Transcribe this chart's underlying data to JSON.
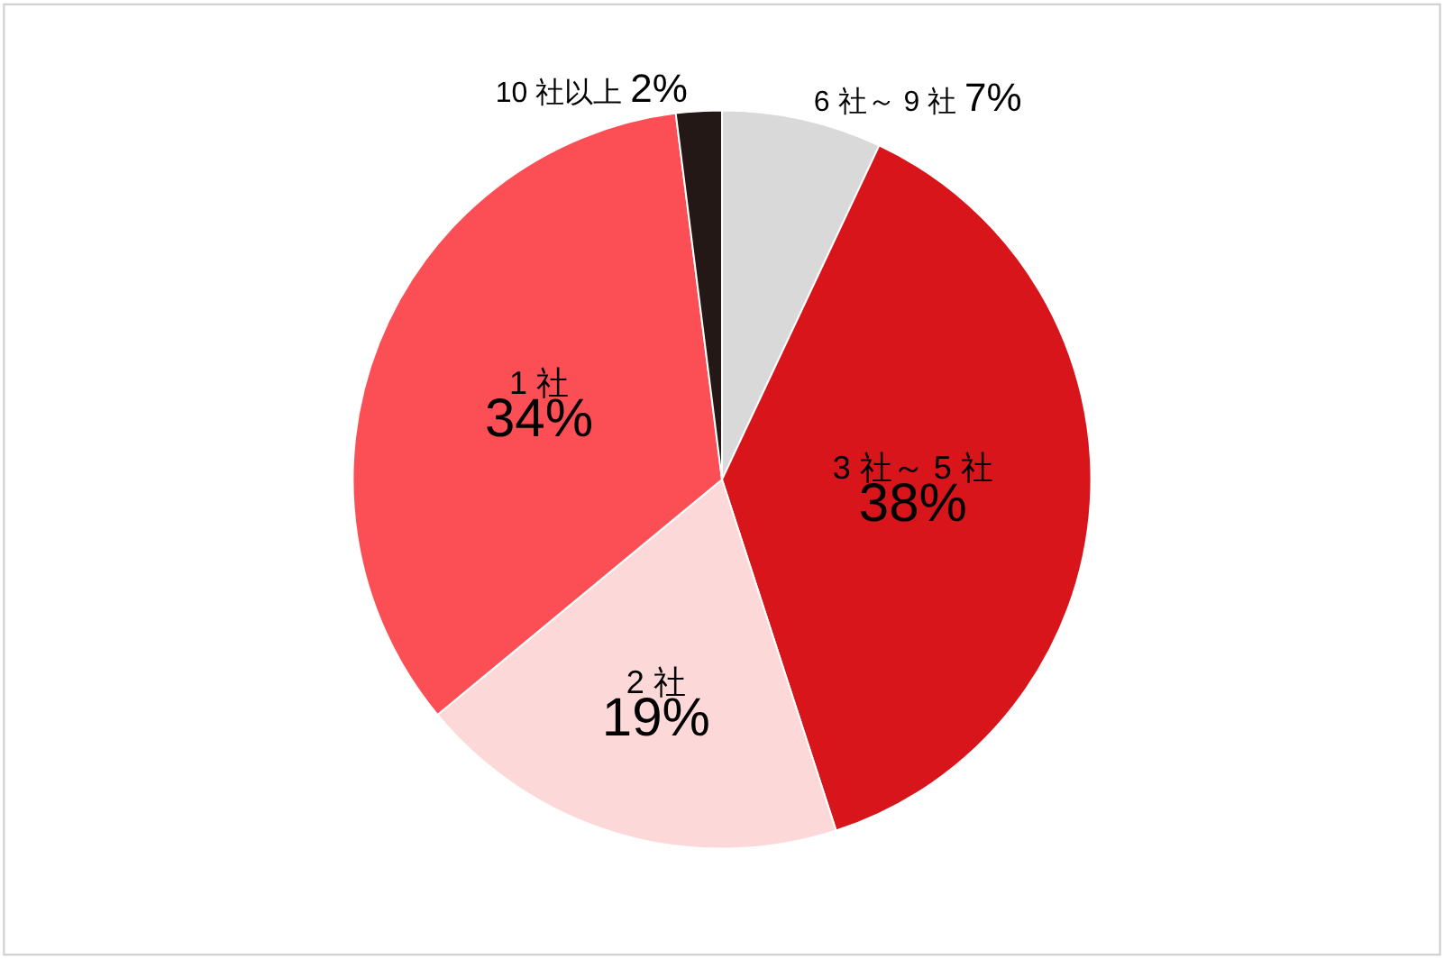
{
  "chart_data": {
    "type": "pie",
    "categories": [
      "6 社～ 9 社",
      "3 社～ 5 社",
      "2 社",
      "1 社",
      "10 社以上"
    ],
    "values": [
      7,
      38,
      19,
      34,
      2
    ],
    "colors": [
      "#d9d9d9",
      "#d7151a",
      "#fdd8d8",
      "#fc4f55",
      "#231815"
    ],
    "value_labels": [
      "7%",
      "38%",
      "19%",
      "34%",
      "2%"
    ],
    "legend": false
  }
}
